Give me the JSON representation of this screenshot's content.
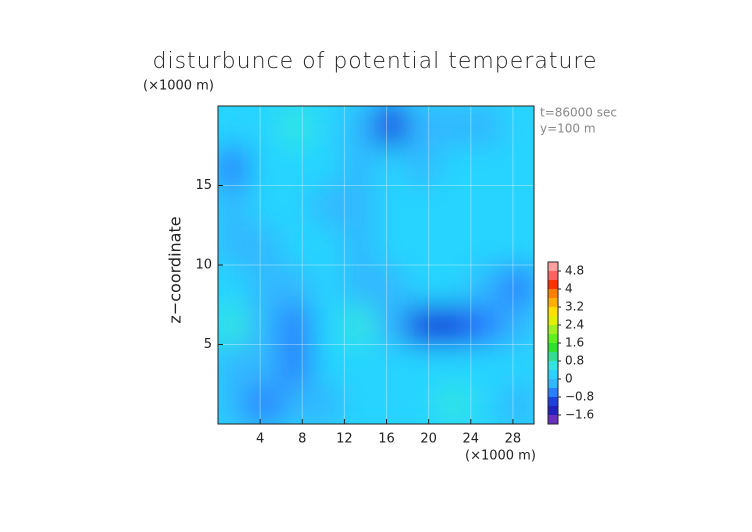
{
  "chart_data": {
    "type": "contour",
    "title": "disturbunce of potential temperature",
    "x_unit_label": "(×1000 m)",
    "y_unit_label": "(×1000 m)",
    "y_label": "z−coordinate",
    "annotations": [
      "t=86000 sec",
      "y=100 m"
    ],
    "xlim": [
      0,
      30
    ],
    "xticks": [
      4,
      8,
      12,
      16,
      20,
      24,
      28
    ],
    "ylim": [
      0,
      20
    ],
    "yticks": [
      5,
      10,
      15
    ],
    "grid": true,
    "z": [
      [
        -0.3,
        -0.5,
        -0.2,
        -0.1,
        0.1,
        0.2,
        0.3,
        0.4,
        0.2,
        -0.1
      ],
      [
        -0.2,
        -0.4,
        -0.6,
        0.1,
        0.2,
        0.1,
        0.0,
        0.2,
        0.3,
        0.1
      ],
      [
        0.6,
        -0.3,
        -0.6,
        0.3,
        0.5,
        -0.3,
        -0.9,
        -1.1,
        -0.7,
        -0.4
      ],
      [
        0.1,
        -0.3,
        -0.2,
        0.0,
        -0.1,
        -0.4,
        0.0,
        0.1,
        -0.4,
        -0.6
      ],
      [
        -0.2,
        -0.3,
        0.1,
        0.0,
        -0.3,
        0.0,
        0.1,
        0.0,
        0.1,
        0.0
      ],
      [
        -0.4,
        0.0,
        0.2,
        -0.2,
        -0.1,
        0.0,
        0.0,
        0.2,
        0.0,
        0.2
      ],
      [
        -0.5,
        0.0,
        0.0,
        0.1,
        -0.2,
        0.0,
        -0.1,
        0.0,
        0.2,
        0.0
      ],
      [
        0.0,
        0.1,
        0.4,
        0.0,
        -0.1,
        -0.9,
        -0.4,
        -0.3,
        -0.4,
        0.0
      ]
    ],
    "colorbar_lim": [
      -2,
      5.2
    ],
    "levels": [
      -2,
      -1.6,
      -1.2,
      -0.8,
      -0.4,
      0,
      0.4,
      0.8,
      1.2,
      1.6,
      2,
      2.4,
      2.8,
      3.2,
      3.6,
      4,
      4.4,
      4.8,
      5.2
    ],
    "level_colors": [
      "#6a2fbf",
      "#2020c0",
      "#1e40e0",
      "#2a7fff",
      "#30b8ff",
      "#28d4ff",
      "#30e6e0",
      "#30e090",
      "#30e030",
      "#60f020",
      "#a0f020",
      "#e0f000",
      "#ffe000",
      "#ffb000",
      "#ff8000",
      "#ff3000",
      "#ff6060",
      "#ffa0a0"
    ],
    "colorbar_ticks": [
      {
        "value": -1.6,
        "label": "−1.6"
      },
      {
        "value": -0.8,
        "label": "−0.8"
      },
      0,
      0.8,
      1.6,
      2.4,
      3.2,
      4,
      4.8
    ]
  }
}
